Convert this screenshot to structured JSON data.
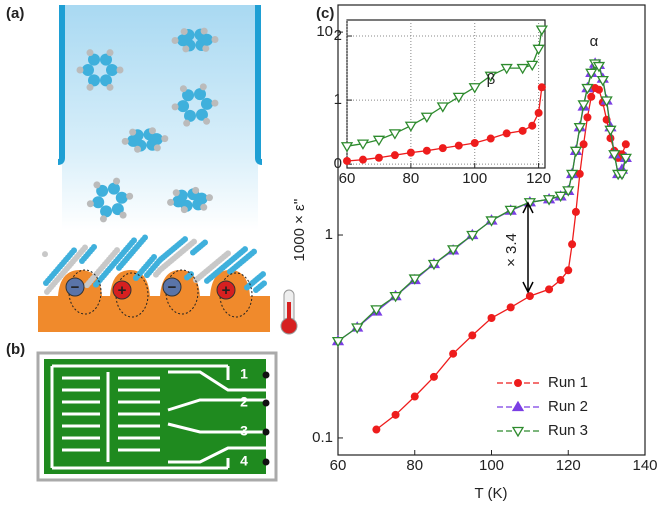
{
  "panels": {
    "a": {
      "label": "(a)",
      "charges": [
        "−",
        "+",
        "−",
        "+"
      ]
    },
    "b": {
      "label": "(b)",
      "electrodes": [
        "1",
        "2",
        "3",
        "4"
      ]
    },
    "c": {
      "label": "(c)"
    }
  },
  "chart_data": [
    {
      "type": "line",
      "x_label": "T (K)",
      "y_label": "1000 × ε''",
      "yscale": "log",
      "xlim": [
        60,
        140
      ],
      "ylim": [
        0.0824,
        13.6
      ],
      "xticks": [
        60,
        80,
        100,
        120,
        140
      ],
      "yticks": [
        0.1,
        1,
        10
      ],
      "legend": "lower right",
      "annotations": [
        "α",
        "× 3.4"
      ],
      "x": [
        60,
        65,
        70,
        75,
        80,
        85,
        90,
        95,
        100,
        105,
        110,
        115,
        118,
        120,
        121,
        122,
        123,
        124,
        125,
        126,
        127,
        128,
        129,
        130,
        131,
        132,
        133,
        134,
        135
      ],
      "series": [
        {
          "name": "Run 1",
          "color": "#ee1c1c",
          "marker": "circle",
          "values": [
            null,
            null,
            0.11,
            0.13,
            0.16,
            0.2,
            0.26,
            0.32,
            0.39,
            0.44,
            0.5,
            0.54,
            0.6,
            0.67,
            0.9,
            1.3,
            2.0,
            2.8,
            3.8,
            4.8,
            5.3,
            5.2,
            4.5,
            3.7,
            3.0,
            2.6,
            2.4,
            2.5,
            2.8
          ]
        },
        {
          "name": "Run 2",
          "color": "#7b3fe4",
          "marker": "triangle-up",
          "values": [
            0.3,
            0.35,
            0.42,
            0.5,
            0.6,
            0.72,
            0.84,
            1.0,
            1.18,
            1.32,
            1.45,
            1.5,
            1.55,
            1.65,
            2.0,
            2.6,
            3.4,
            4.3,
            5.3,
            6.3,
            7.0,
            6.9,
            5.9,
            4.6,
            3.4,
            2.5,
            2.0,
            2.1,
            2.4
          ]
        },
        {
          "name": "Run 3",
          "color": "#2e8b2e",
          "marker": "triangle-down",
          "values": [
            0.3,
            0.35,
            0.43,
            0.5,
            0.61,
            0.72,
            0.85,
            1.0,
            1.18,
            1.33,
            1.45,
            1.5,
            1.56,
            1.66,
            2.0,
            2.6,
            3.4,
            4.4,
            5.3,
            6.3,
            7.0,
            6.8,
            5.8,
            4.6,
            3.3,
            2.5,
            2.0,
            2.0,
            2.4
          ]
        }
      ]
    },
    {
      "type": "line",
      "grid": true,
      "xlim": [
        60,
        122
      ],
      "ylim": [
        -0.06,
        2.25
      ],
      "xticks": [
        60,
        80,
        100,
        120
      ],
      "yticks": [
        0,
        1,
        2
      ],
      "annotations": [
        "β"
      ],
      "x": [
        60,
        65,
        70,
        75,
        80,
        85,
        90,
        95,
        100,
        105,
        110,
        115,
        118,
        120,
        121
      ],
      "series": [
        {
          "color": "#2e8b2e",
          "marker": "triangle-down",
          "values": [
            0.28,
            0.32,
            0.38,
            0.48,
            0.6,
            0.74,
            0.9,
            1.05,
            1.2,
            1.38,
            1.5,
            1.5,
            1.55,
            1.8,
            2.1
          ]
        },
        {
          "color": "#ee1c1c",
          "marker": "circle",
          "values": [
            0.05,
            0.07,
            0.1,
            0.14,
            0.18,
            0.21,
            0.25,
            0.29,
            0.33,
            0.4,
            0.48,
            0.52,
            0.6,
            0.8,
            1.2
          ]
        }
      ]
    }
  ]
}
